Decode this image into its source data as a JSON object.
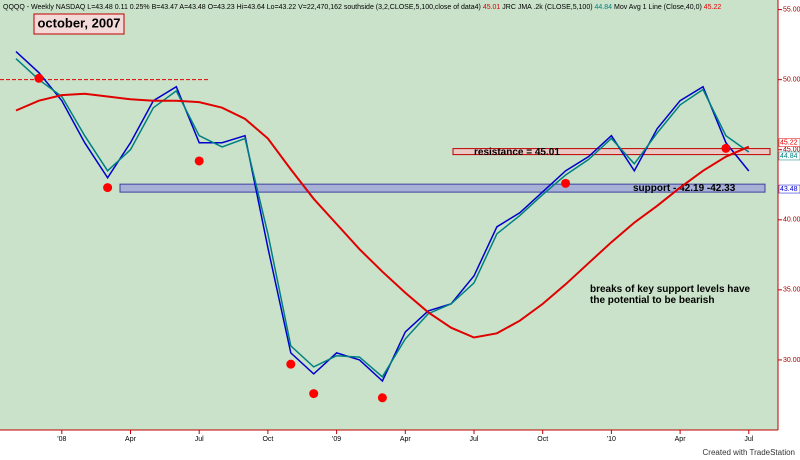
{
  "chart_data": {
    "type": "line",
    "header": {
      "symbol": "QQQQ - Weekly NASDAQ",
      "quote": "L=43.48  0.11  0.25%  B=43.47  A=43.48  O=43.23  Hi=43.64  Lo=43.22  V=22,470,162",
      "study1": "southside (3,2,CLOSE,5,100,close of data4)",
      "study1_value": "45.01",
      "study2": "JRC JMA .2k (CLOSE,5,100)",
      "study2_value": "44.84",
      "study3": "Mov Avg 1 Line (Close,40,0)",
      "study3_value": "45.22"
    },
    "title": "october, 2007",
    "categories": [
      null,
      null,
      "'08",
      null,
      null,
      "Apr",
      null,
      null,
      "Jul",
      null,
      null,
      "Oct",
      null,
      null,
      "'09",
      null,
      null,
      "Apr",
      null,
      null,
      "Jul",
      null,
      null,
      "Oct",
      null,
      null,
      "'10",
      null,
      null,
      "Apr",
      null,
      null,
      "Jul"
    ],
    "series": [
      {
        "name": "QQQQ",
        "color": "#0000cc",
        "style": "line",
        "values": [
          52.0,
          50.5,
          48.5,
          45.5,
          43.0,
          45.5,
          48.5,
          49.5,
          45.5,
          45.5,
          46.0,
          38.0,
          30.5,
          29.0,
          30.5,
          30.0,
          28.5,
          32.0,
          33.5,
          34.0,
          36.0,
          39.5,
          40.5,
          42.0,
          43.5,
          44.5,
          46.0,
          43.5,
          46.5,
          48.5,
          49.5,
          45.5,
          43.48
        ]
      },
      {
        "name": "JRC JMA",
        "color": "#008080",
        "style": "line",
        "values": [
          51.5,
          50.0,
          48.8,
          46.0,
          43.5,
          45.0,
          48.0,
          49.2,
          46.0,
          45.2,
          45.8,
          39.0,
          31.0,
          29.5,
          30.3,
          30.2,
          28.8,
          31.5,
          33.3,
          34.0,
          35.5,
          39.0,
          40.3,
          41.8,
          43.2,
          44.3,
          45.8,
          44.0,
          46.2,
          48.2,
          49.3,
          46.0,
          44.84
        ]
      },
      {
        "name": "Mov Avg",
        "color": "#e00000",
        "style": "line",
        "values": [
          47.8,
          48.5,
          48.9,
          49.0,
          48.8,
          48.6,
          48.5,
          48.5,
          48.4,
          48.0,
          47.2,
          45.8,
          43.6,
          41.5,
          39.7,
          37.9,
          36.3,
          34.8,
          33.4,
          32.3,
          31.6,
          31.9,
          32.8,
          34.0,
          35.4,
          36.9,
          38.4,
          39.8,
          41.0,
          42.3,
          43.5,
          44.5,
          45.22
        ]
      },
      {
        "name": "southside",
        "color": "#ff0000",
        "style": "marker",
        "values": [
          null,
          50.1,
          null,
          null,
          42.3,
          null,
          null,
          null,
          44.2,
          null,
          null,
          null,
          29.7,
          27.6,
          null,
          null,
          27.3,
          null,
          null,
          null,
          null,
          null,
          null,
          null,
          42.6,
          null,
          null,
          null,
          null,
          null,
          null,
          45.1,
          null
        ]
      }
    ],
    "ylim": [
      25,
      55.4
    ],
    "yticks": [
      {
        "value": 30,
        "label": "30.00"
      },
      {
        "value": 35,
        "label": "35.00"
      },
      {
        "value": 40,
        "label": "40.00"
      },
      {
        "value": 45,
        "label": "45.00"
      },
      {
        "value": 50,
        "label": "50.00"
      },
      {
        "value": 55,
        "label": "55.00"
      }
    ],
    "price_tags": [
      45.22,
      44.84,
      43.48
    ],
    "reference_line": 50.0,
    "resistance": {
      "label": "resistance = 45.01",
      "value": 45.01
    },
    "support": {
      "label": "support - 42.19 -42.33",
      "values": [
        42.19,
        42.33
      ]
    },
    "annotation": "breaks of key support levels have the potential to be bearish",
    "credit": "Created with TradeStation"
  }
}
